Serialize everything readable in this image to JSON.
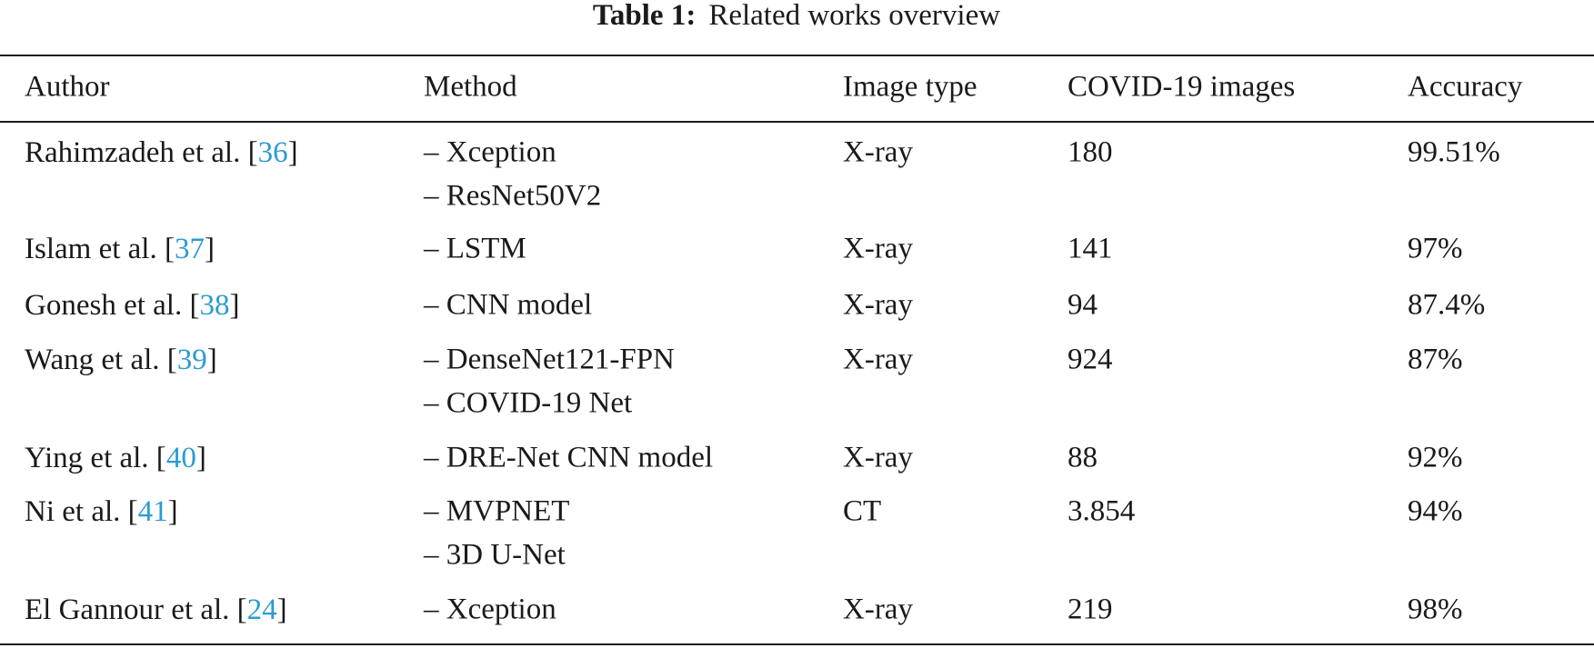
{
  "title": {
    "label": "Table 1:",
    "text": "Related works overview"
  },
  "table": {
    "header": [
      "Author",
      "Method",
      "Image type",
      "COVID-19 images",
      "Accuracy"
    ],
    "rows": [
      {
        "author": [
          "Rahimzadeh et al. [",
          "36",
          "]"
        ],
        "method": [
          "– Xception",
          "– ResNet50V2"
        ],
        "image_type": "X-ray",
        "images": "180",
        "accuracy": "99.51%"
      },
      {
        "author": [
          "Islam et al. [",
          "37",
          "]"
        ],
        "method": [
          "– LSTM"
        ],
        "image_type": "X-ray",
        "images": "141",
        "accuracy": "97%"
      },
      {
        "author": [
          "Gonesh et al. [",
          "38",
          "]"
        ],
        "method": [
          "– CNN model"
        ],
        "image_type": "X-ray",
        "images": "94",
        "accuracy": "87.4%"
      },
      {
        "author": [
          "Wang et al. [",
          "39",
          "]"
        ],
        "method": [
          "– DenseNet121-FPN",
          "– COVID-19 Net"
        ],
        "image_type": "X-ray",
        "images": "924",
        "accuracy": "87%"
      },
      {
        "author": [
          "Ying et al. [",
          "40",
          "]"
        ],
        "method": [
          "– DRE-Net CNN model"
        ],
        "image_type": "X-ray",
        "images": "88",
        "accuracy": "92%"
      },
      {
        "author": [
          "Ni et al. [",
          "41",
          "]"
        ],
        "method": [
          "– MVPNET",
          "– 3D U-Net"
        ],
        "image_type": "CT",
        "images": "3.854",
        "accuracy": "94%"
      },
      {
        "author": [
          "El Gannour et al. [",
          "24",
          "]"
        ],
        "method": [
          "– Xception"
        ],
        "image_type": "X-ray",
        "images": "219",
        "accuracy": "98%"
      }
    ]
  }
}
